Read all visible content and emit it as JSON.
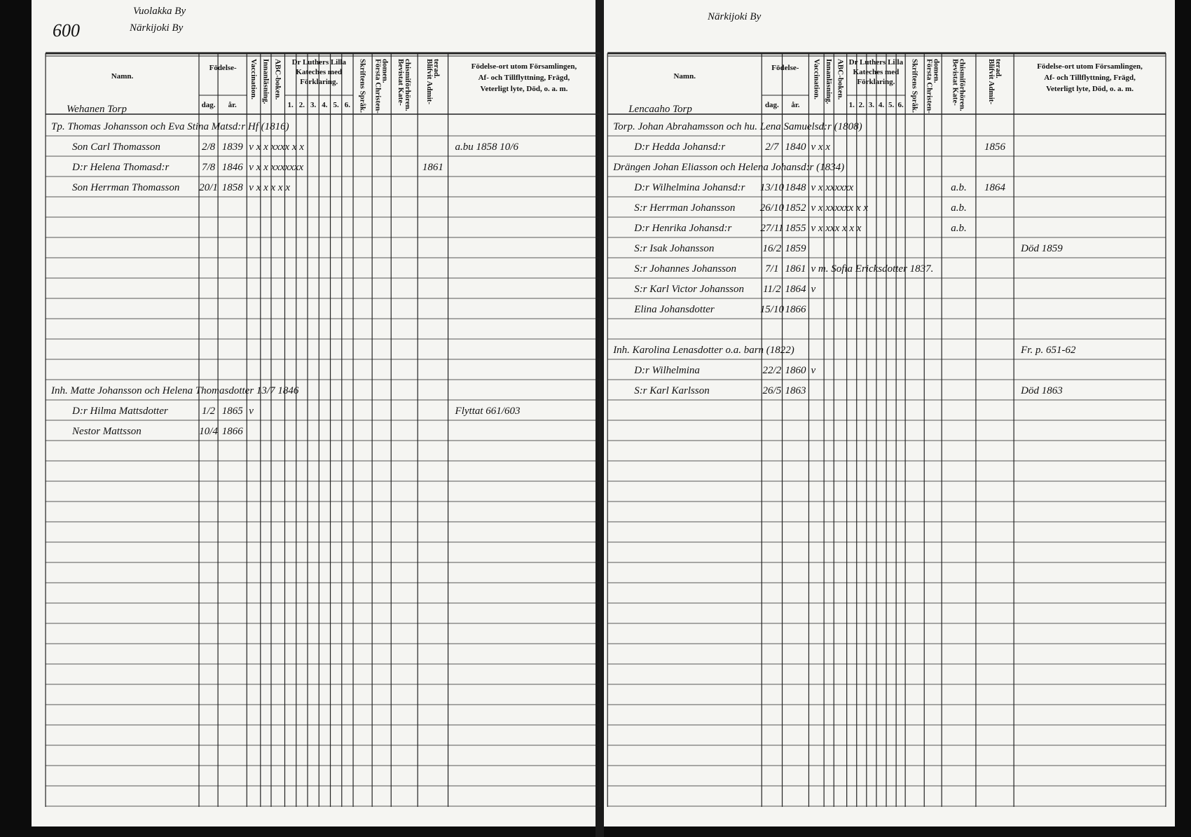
{
  "header": {
    "name": "Namn.",
    "birth": "Födelse-",
    "day": "dag.",
    "year": "år.",
    "vertical": [
      [
        "Vaccination."
      ],
      [
        "Innanläsning."
      ],
      [
        "ABC-boken."
      ],
      [
        "Skriftens Språk."
      ],
      [
        "Första Christen-",
        "domen."
      ],
      [
        "Bevistat Kate-",
        "chismiförhören."
      ],
      [
        "Blifvit Admit-",
        "terad."
      ]
    ],
    "catechism": [
      "Dr Luthers Lilla",
      "Kateches med",
      "Förklaring."
    ],
    "catechism_numbers": [
      "1.",
      "2.",
      "3.",
      "4.",
      "5.",
      "6."
    ],
    "note": [
      "Födelse-ort utom Församlingen,",
      "Af- och Tillflyttning, Frägd,",
      "Veterligt lyte, Död, o. a. m."
    ]
  },
  "left_page": {
    "page_number": "600",
    "village": [
      "Vuolakka By",
      "Närkijoki By"
    ],
    "farm": "Wehanen Torp",
    "rows": [
      {
        "name": "Tp. Thomas Johansson och Eva Stina Matsd:r Hf (1816)"
      },
      {
        "name": "Son Carl Thomasson",
        "day": "2/8",
        "year": "1839",
        "marks": "v x x xxxx x x",
        "note": "a.bu 1858 10/6"
      },
      {
        "name": "D:r Helena Thomasd:r",
        "day": "7/8",
        "year": "1846",
        "marks": "v x x xxxxxxx",
        "admitted": "1861"
      },
      {
        "name": "Son Herrman Thomasson",
        "day": "20/1",
        "year": "1858",
        "marks": "v x x x x x"
      },
      {
        "name": "Inh. Matte Johansson och Helena Thomasdotter 13/7 1846"
      },
      {
        "name": "D:r Hilma Mattsdotter",
        "day": "1/2",
        "year": "1865",
        "marks": "v",
        "note": "Flyttat 661/603"
      },
      {
        "name": "Nestor Mattsson",
        "day": "10/4",
        "year": "1866"
      }
    ]
  },
  "right_page": {
    "village": [
      "Närkijoki By"
    ],
    "farm": "Lencaaho Torp",
    "rows": [
      {
        "name": "Torp. Johan Abrahamsson och hu. Lena Samuelsd:r (1808)"
      },
      {
        "name": "D:r Hedda Johansd:r",
        "day": "2/7",
        "year": "1840",
        "marks": "v x x",
        "admitted": "1856"
      },
      {
        "name": "Drängen Johan Eliasson och Helena Johansd:r (1834)"
      },
      {
        "name": "D:r Wilhelmina Johansd:r",
        "day": "13/10",
        "year": "1848",
        "marks": "v x xxxxxx",
        "bevistat": "a.b.",
        "admitted": "1864"
      },
      {
        "name": "S:r Herrman Johansson",
        "day": "26/10",
        "year": "1852",
        "marks": "v x xxxxxx x x",
        "bevistat": "a.b."
      },
      {
        "name": "D:r Henrika Johansd:r",
        "day": "27/11",
        "year": "1855",
        "marks": "v x xxx x x x",
        "bevistat": "a.b."
      },
      {
        "name": "S:r Isak Johansson",
        "day": "16/2",
        "year": "1859",
        "note": "Död 1859"
      },
      {
        "name": "S:r Johannes Johansson",
        "day": "7/1",
        "year": "1861",
        "marks": "v  m. Sofia Ericksdotter 1837."
      },
      {
        "name": "S:r Karl Victor Johansson",
        "day": "11/2",
        "year": "1864",
        "marks": "v"
      },
      {
        "name": "Elina Johansdotter",
        "day": "15/10",
        "year": "1866"
      },
      {
        "name": "Inh. Karolina Lenasdotter o.a. barn (1822)",
        "note": "Fr. p. 651-62"
      },
      {
        "name": "D:r Wilhelmina",
        "day": "22/2",
        "year": "1860",
        "marks": "v"
      },
      {
        "name": "S:r Karl Karlsson",
        "day": "26/5",
        "year": "1863",
        "note": "Död 1863"
      }
    ]
  }
}
